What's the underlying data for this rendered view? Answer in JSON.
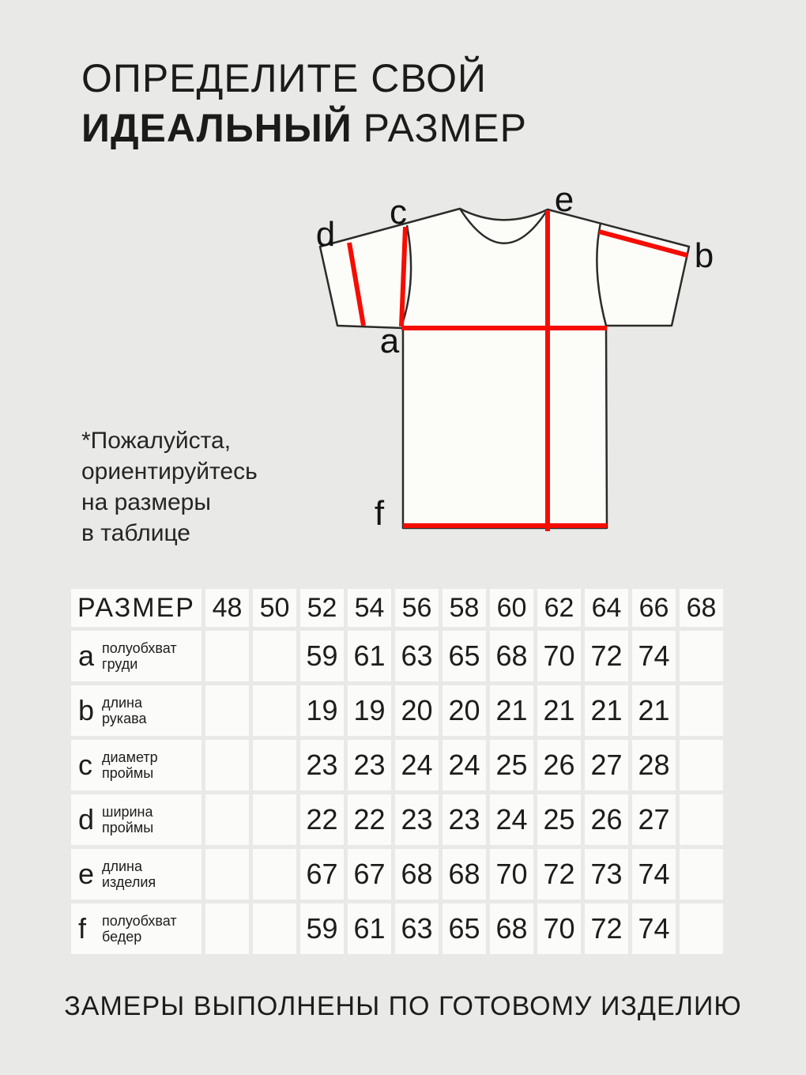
{
  "title": {
    "line1": "ОПРЕДЕЛИТЕ СВОЙ",
    "line2_bold": "ИДЕАЛЬНЫЙ",
    "line2_regular": "РАЗМЕР"
  },
  "note": {
    "lines": [
      "*Пожалуйста,",
      "ориентируйтесь",
      "на размеры",
      "в таблице"
    ]
  },
  "diagram": {
    "labels": {
      "a": "a",
      "b": "b",
      "c": "c",
      "d": "d",
      "e": "e",
      "f": "f"
    },
    "line_color": "#f50d02",
    "shirt_fill": "#fcfcf9",
    "outline_color": "#2b2b29"
  },
  "size_table": {
    "header_label": "РАЗМЕР",
    "sizes": [
      "48",
      "50",
      "52",
      "54",
      "56",
      "58",
      "60",
      "62",
      "64",
      "66",
      "68"
    ],
    "rows": [
      {
        "letter": "a",
        "name": [
          "полуобхват",
          "груди"
        ],
        "values": [
          "",
          "",
          "59",
          "61",
          "63",
          "65",
          "68",
          "70",
          "72",
          "74",
          ""
        ]
      },
      {
        "letter": "b",
        "name": [
          "длина",
          "рукава"
        ],
        "values": [
          "",
          "",
          "19",
          "19",
          "20",
          "20",
          "21",
          "21",
          "21",
          "21",
          ""
        ]
      },
      {
        "letter": "c",
        "name": [
          "диаметр",
          "проймы"
        ],
        "values": [
          "",
          "",
          "23",
          "23",
          "24",
          "24",
          "25",
          "26",
          "27",
          "28",
          ""
        ]
      },
      {
        "letter": "d",
        "name": [
          "ширина",
          "проймы"
        ],
        "values": [
          "",
          "",
          "22",
          "22",
          "23",
          "23",
          "24",
          "25",
          "26",
          "27",
          ""
        ]
      },
      {
        "letter": "e",
        "name": [
          "длина",
          "изделия"
        ],
        "values": [
          "",
          "",
          "67",
          "67",
          "68",
          "68",
          "70",
          "72",
          "73",
          "74",
          ""
        ]
      },
      {
        "letter": "f",
        "name": [
          "полуобхват",
          "бедер"
        ],
        "values": [
          "",
          "",
          "59",
          "61",
          "63",
          "65",
          "68",
          "70",
          "72",
          "74",
          ""
        ]
      }
    ]
  },
  "footer": {
    "text": "ЗАМЕРЫ ВЫПОЛНЕНЫ ПО ГОТОВОМУ ИЗДЕЛИЮ"
  },
  "colors": {
    "background": "#e9e9e7",
    "cell": "#fbfbfa",
    "text": "#1c1c1a",
    "accent_red": "#f50d02"
  }
}
